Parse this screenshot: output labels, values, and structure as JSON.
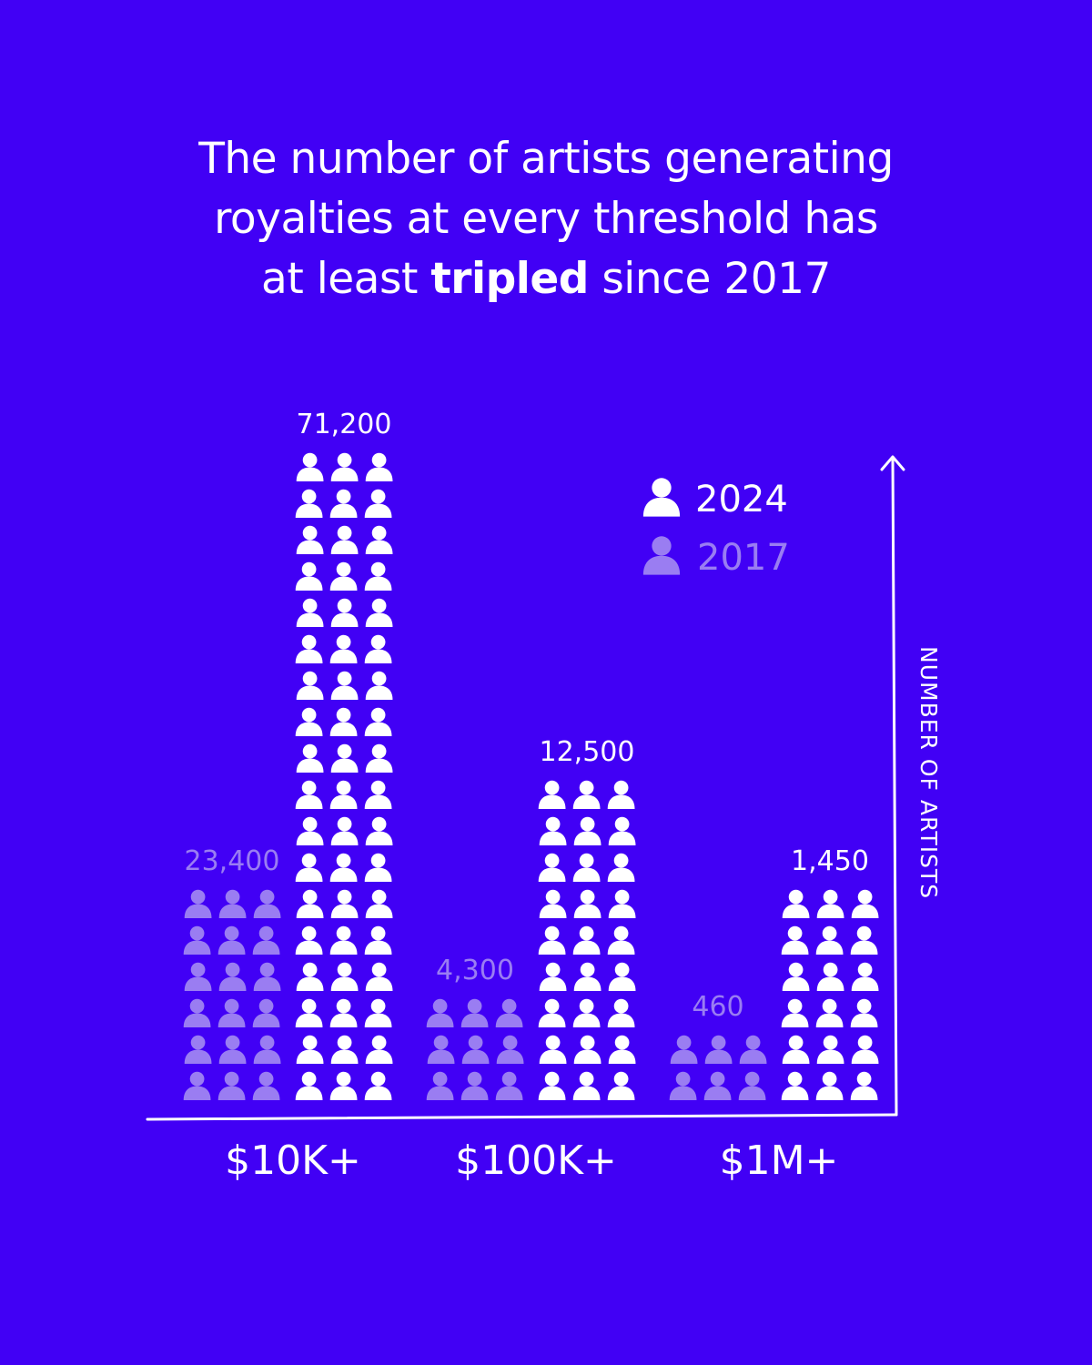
{
  "title": {
    "line1": "The number of artists generating",
    "line2": "royalties at every threshold has",
    "line3_pre": "at least ",
    "line3_bold": "tripled",
    "line3_post": " since 2017"
  },
  "colors": {
    "background": "#4100f5",
    "series_2024": "#ffffff",
    "series_2017": "#9a7df2"
  },
  "icon": "person-icon",
  "chart_data": {
    "type": "bar",
    "categories": [
      "$10K+",
      "$100K+",
      "$1M+"
    ],
    "series": [
      {
        "name": "2017",
        "values": [
          23400,
          4300,
          460
        ],
        "labels": [
          "23,400",
          "4,300",
          "460"
        ],
        "icon_rows": [
          6,
          3,
          2
        ]
      },
      {
        "name": "2024",
        "values": [
          71200,
          12500,
          1450
        ],
        "labels": [
          "71,200",
          "12,500",
          "1,450"
        ],
        "icon_rows": [
          18,
          9,
          6
        ]
      }
    ],
    "icons_per_row": 3,
    "ylabel": "NUMBER OF ARTISTS",
    "legend": {
      "position": "top-right"
    },
    "grid": false
  }
}
